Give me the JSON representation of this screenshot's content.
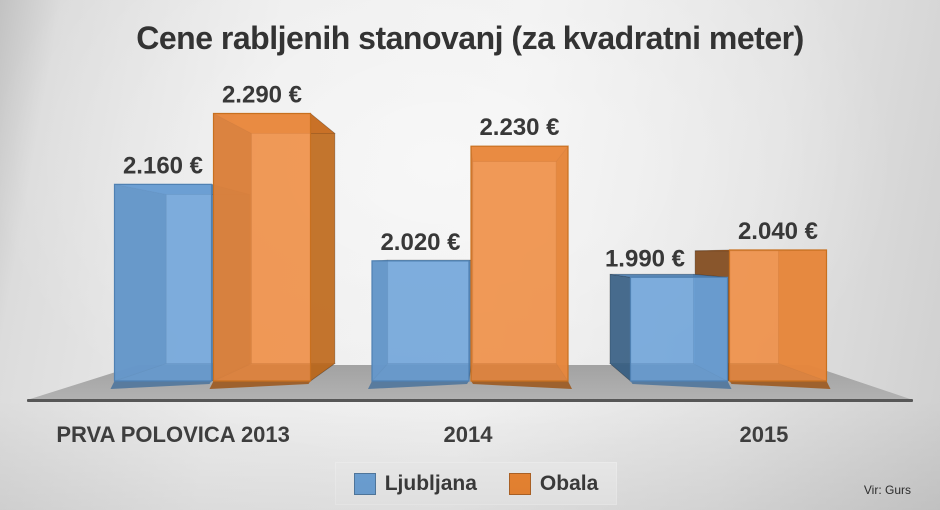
{
  "title": "Cene rabljenih stanovanj (za kvadratni meter)",
  "source_note": "Vir: Gurs",
  "colors": {
    "background_light": "#F0F0F0",
    "background_dark": "#C6C6C6",
    "floor": "#ABABAB",
    "axis_line": "#575757",
    "title_text": "#333333",
    "label_text": "#383838",
    "legend_bg": "#EFEFEF"
  },
  "chart_data": {
    "type": "bar",
    "style": "3d-perspective-clustered-columns",
    "title": "Cene rabljenih stanovanj (za kvadratni meter)",
    "categories": [
      "PRVA POLOVICA 2013",
      "2014",
      "2015"
    ],
    "series": [
      {
        "name": "Ljubljana",
        "color": "#6FA4D9",
        "values": [
          2160,
          2020,
          1990
        ],
        "labels": [
          "2.160 €",
          "2.020 €",
          "1.990 €"
        ],
        "faces": {
          "front": "#6FA4D9",
          "top": "#4C7DAF",
          "side_dark": "#3B6083",
          "side_mid": "#4C7DAF",
          "shadow": "#4F759C",
          "edge": "#4F81B3"
        }
      },
      {
        "name": "Obala",
        "color": "#EE8733",
        "values": [
          2290,
          2230,
          2040
        ],
        "labels": [
          "2.290 €",
          "2.230 €",
          "2.040 €"
        ],
        "faces": {
          "front": "#EF8D44",
          "top": "#C96F26",
          "side_dark": "#7E4A1F",
          "side_mid": "#BE6B20",
          "shadow": "#9C591F",
          "edge": "#C8701F"
        }
      }
    ],
    "ylim": [
      1800,
      2400
    ],
    "value_unit": "€",
    "grid": false,
    "value_axis_visible": false,
    "legend_position": "bottom"
  }
}
